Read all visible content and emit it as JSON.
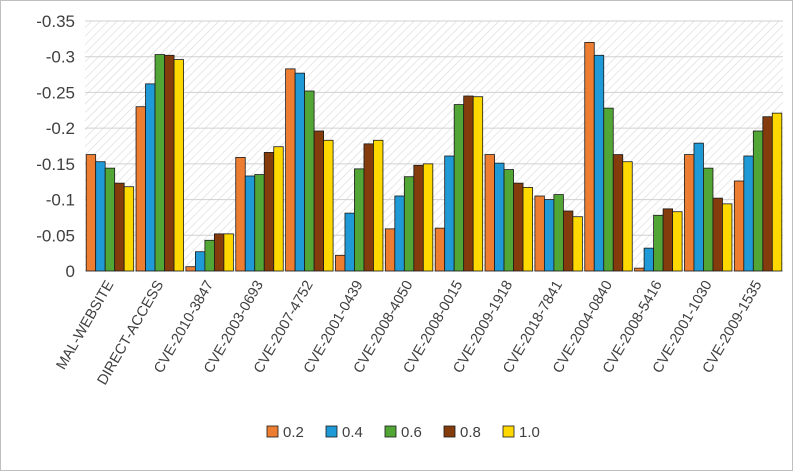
{
  "chart_data": {
    "type": "bar",
    "title": "",
    "xlabel": "",
    "ylabel": "",
    "categories": [
      "MAL-WEBSITE",
      "DIRECT-ACCESS",
      "CVE-2010-3847",
      "CVE-2003-0693",
      "CVE-2007-4752",
      "CVE-2001-0439",
      "CVE-2008-4050",
      "CVE-2008-0015",
      "CVE-2009-1918",
      "CVE-2018-7841",
      "CVE-2004-0840",
      "CVE-2008-5416",
      "CVE-2001-1030",
      "CVE-2009-1535"
    ],
    "series": [
      {
        "name": "0.2",
        "color": "#ed7d31",
        "values": [
          -0.163,
          -0.23,
          -0.006,
          -0.159,
          -0.283,
          -0.022,
          -0.059,
          -0.06,
          -0.163,
          -0.105,
          -0.32,
          -0.004,
          -0.163,
          -0.126
        ]
      },
      {
        "name": "0.4",
        "color": "#1f9ad6",
        "values": [
          -0.153,
          -0.262,
          -0.027,
          -0.133,
          -0.277,
          -0.081,
          -0.105,
          -0.161,
          -0.151,
          -0.1,
          -0.302,
          -0.032,
          -0.179,
          -0.161
        ]
      },
      {
        "name": "0.6",
        "color": "#52a635",
        "values": [
          -0.144,
          -0.303,
          -0.043,
          -0.135,
          -0.252,
          -0.143,
          -0.132,
          -0.233,
          -0.142,
          -0.107,
          -0.228,
          -0.078,
          -0.144,
          -0.196
        ]
      },
      {
        "name": "0.8",
        "color": "#843c0c",
        "values": [
          -0.123,
          -0.302,
          -0.052,
          -0.166,
          -0.196,
          -0.178,
          -0.148,
          -0.245,
          -0.123,
          -0.084,
          -0.163,
          -0.087,
          -0.102,
          -0.216
        ]
      },
      {
        "name": "1.0",
        "color": "#ffd800",
        "values": [
          -0.118,
          -0.296,
          -0.052,
          -0.174,
          -0.183,
          -0.183,
          -0.15,
          -0.244,
          -0.117,
          -0.076,
          -0.153,
          -0.083,
          -0.094,
          -0.221
        ]
      }
    ],
    "y_axis": {
      "reversed": true,
      "ylim": [
        0,
        -0.35
      ],
      "ticks": [
        0,
        -0.05,
        -0.1,
        -0.15,
        -0.2,
        -0.25,
        -0.3,
        -0.35
      ],
      "tick_labels": [
        "0",
        "-0.05",
        "-0.1",
        "-0.15",
        "-0.2",
        "-0.25",
        "-0.3",
        "-0.35"
      ]
    },
    "grid": true,
    "plot_background": "hatched",
    "legend_position": "bottom"
  }
}
